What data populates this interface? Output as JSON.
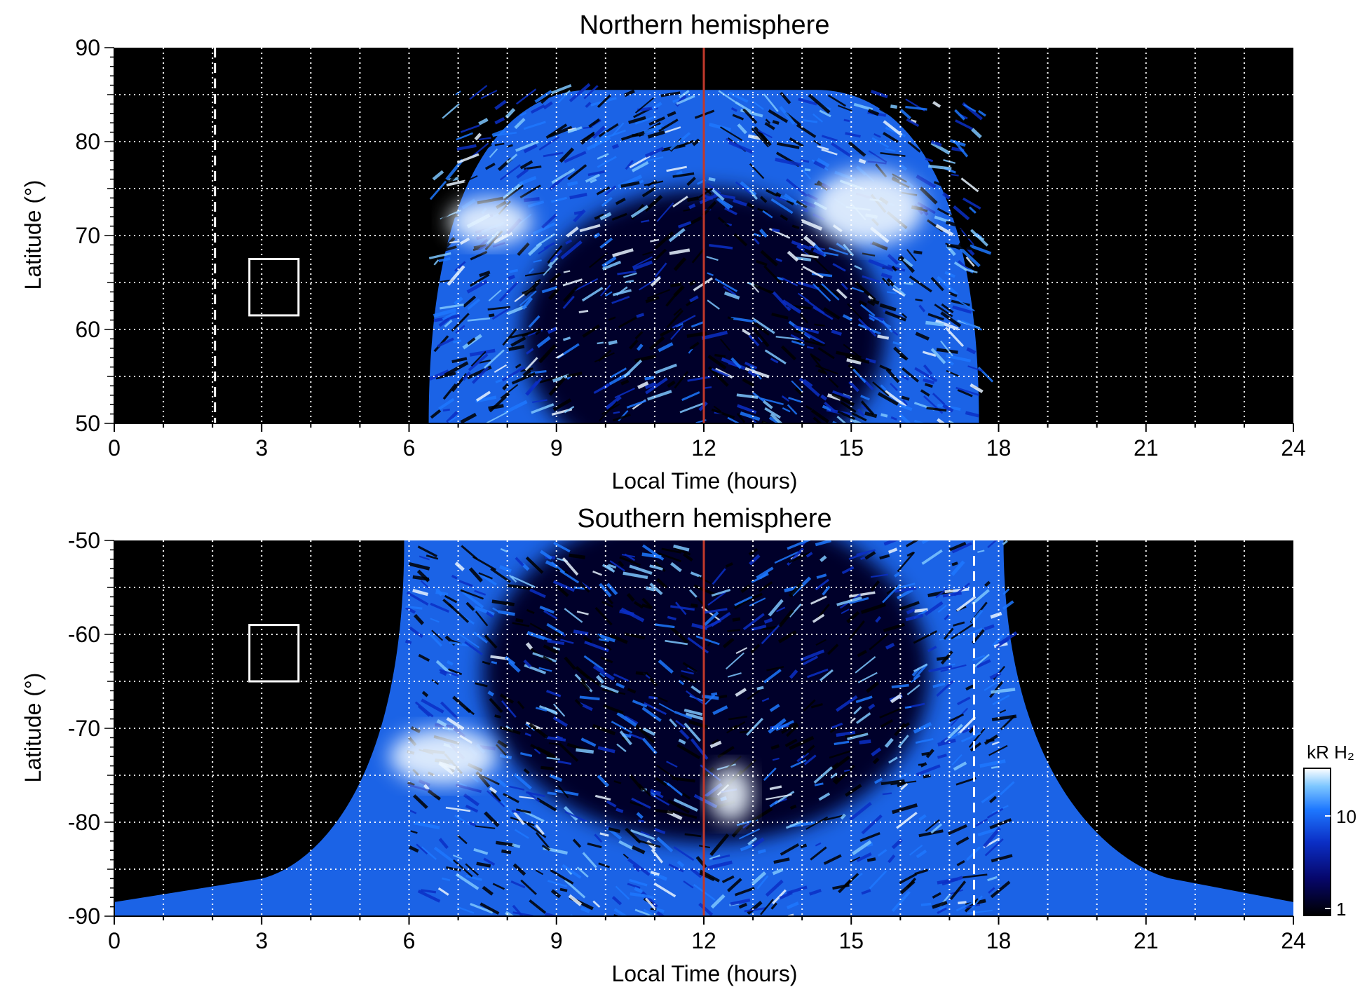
{
  "chart_data": [
    {
      "type": "heatmap",
      "title": "Northern hemisphere",
      "xlabel": "Local Time (hours)",
      "ylabel": "Latitude (°)",
      "xlim": [
        0,
        24
      ],
      "ylim": [
        50,
        90
      ],
      "x_ticks": [
        0,
        3,
        6,
        9,
        12,
        15,
        18,
        21,
        24
      ],
      "x_tick_labels": [
        "0",
        "3",
        "6",
        "9",
        "12",
        "15",
        "18",
        "21",
        "24"
      ],
      "y_ticks": [
        50,
        60,
        70,
        80,
        90
      ],
      "y_tick_labels": [
        "50",
        "60",
        "70",
        "80",
        "90"
      ],
      "grid": true,
      "background_color": "#000000",
      "emission_extent": {
        "x_start": 6.4,
        "x_end": 17.6,
        "lat_min": 50,
        "lat_max": 85.5
      },
      "bright_arcs": [
        {
          "x_range": [
            6.8,
            8.5
          ],
          "lat_range": [
            69,
            74
          ],
          "level": "bright"
        },
        {
          "x_range": [
            14.2,
            16.5
          ],
          "lat_range": [
            69,
            77
          ],
          "level": "bright"
        }
      ],
      "noon_line_x": 12,
      "dashed_line_x": 2.05,
      "marker_box": {
        "x_range": [
          2.75,
          3.75
        ],
        "lat_range": [
          61.5,
          67.5
        ]
      }
    },
    {
      "type": "heatmap",
      "title": "Southern hemisphere",
      "xlabel": "Local Time (hours)",
      "ylabel": "Latitude (°)",
      "xlim": [
        0,
        24
      ],
      "ylim": [
        -90,
        -50
      ],
      "x_ticks": [
        0,
        3,
        6,
        9,
        12,
        15,
        18,
        21,
        24
      ],
      "x_tick_labels": [
        "0",
        "3",
        "6",
        "9",
        "12",
        "15",
        "18",
        "21",
        "24"
      ],
      "y_ticks": [
        -90,
        -80,
        -70,
        -60,
        -50
      ],
      "y_tick_labels": [
        "-90",
        "-80",
        "-70",
        "-60",
        "-50"
      ],
      "grid": true,
      "background_color": "#000000",
      "emission_extent": {
        "x_start": 5.9,
        "x_end": 18.1,
        "lat_min": -90,
        "lat_max": -50
      },
      "bright_arcs": [
        {
          "x_range": [
            5.6,
            7.8
          ],
          "lat_range": [
            -76,
            -70
          ],
          "level": "bright"
        },
        {
          "x_range": [
            12.1,
            13.0
          ],
          "lat_range": [
            -80,
            -74
          ],
          "level": "bright"
        }
      ],
      "noon_line_x": 12,
      "dashed_line_x": 17.5,
      "marker_box": {
        "x_range": [
          2.75,
          3.75
        ],
        "lat_range": [
          -65,
          -59
        ]
      }
    }
  ],
  "colorbar": {
    "label": "kR H₂",
    "tick_labels": [
      "1",
      "10"
    ],
    "scale": "log",
    "range": [
      1,
      30
    ],
    "colors": [
      "#000000",
      "#06066a",
      "#0b2fc6",
      "#1e78ff",
      "#7ec7ff",
      "#ffffff"
    ]
  },
  "colors": {
    "noon_line": "#c0392b",
    "grid": "#ffffff",
    "marker": "#ffffff"
  }
}
